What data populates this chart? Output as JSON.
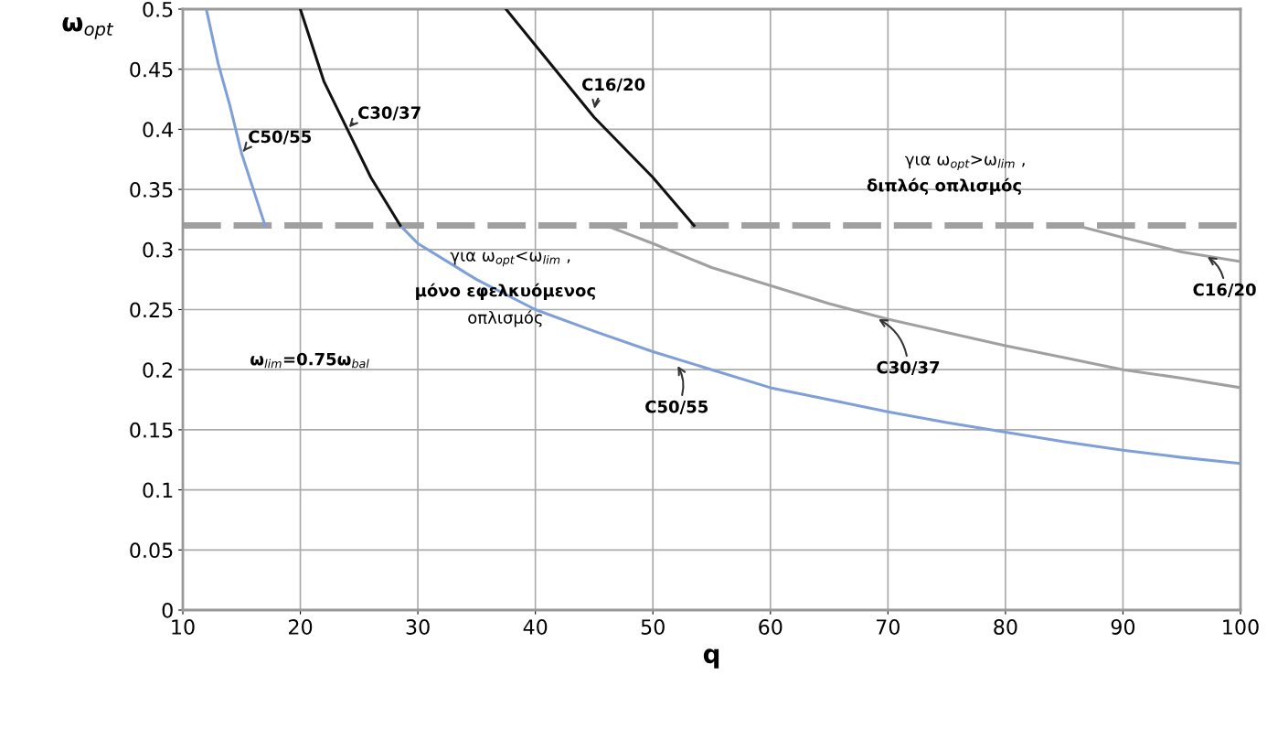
{
  "chart_data": {
    "type": "line",
    "xlabel": "q",
    "ylabel": "ω$_{opt}$",
    "xlim": [
      10,
      100
    ],
    "xticks": [
      10,
      20,
      30,
      40,
      50,
      60,
      70,
      80,
      90,
      100
    ],
    "ylim": [
      0,
      0.5
    ],
    "yticks": [
      0,
      0.05,
      0.1,
      0.15,
      0.2,
      0.25,
      0.3,
      0.35,
      0.4,
      0.45,
      0.5
    ],
    "grid": true,
    "line_style": "solid",
    "marker": "none",
    "series": [
      {
        "color": "#7f9fd8",
        "x": [
          12,
          13,
          14,
          15,
          16,
          17
        ],
        "values": [
          0.5,
          0.455,
          0.42,
          0.38,
          0.35,
          0.32
        ]
      },
      {
        "color": "#7f9fd8",
        "x": [
          28.5,
          30,
          35,
          40,
          45,
          50,
          55,
          60,
          65,
          70,
          75,
          80,
          85,
          90,
          95,
          100
        ],
        "values": [
          0.32,
          0.305,
          0.275,
          0.25,
          0.232,
          0.215,
          0.2,
          0.185,
          0.175,
          0.165,
          0.156,
          0.148,
          0.14,
          0.133,
          0.127,
          0.122
        ]
      },
      {
        "color": "#111111",
        "x": [
          20,
          22,
          24,
          26,
          28.5
        ],
        "values": [
          0.5,
          0.44,
          0.4,
          0.36,
          0.32
        ]
      },
      {
        "color": "#a0a0a0",
        "x": [
          46,
          50,
          55,
          60,
          65,
          70,
          75,
          80,
          85,
          90,
          95,
          100
        ],
        "values": [
          0.32,
          0.305,
          0.285,
          0.27,
          0.255,
          0.242,
          0.231,
          0.22,
          0.21,
          0.2,
          0.193,
          0.185
        ]
      },
      {
        "color": "#111111",
        "x": [
          37.5,
          40,
          45,
          50,
          53.5
        ],
        "values": [
          0.5,
          0.47,
          0.41,
          0.36,
          0.32
        ]
      },
      {
        "color": "#a0a0a0",
        "x": [
          86,
          90,
          95,
          100
        ],
        "values": [
          0.32,
          0.31,
          0.298,
          0.29
        ]
      }
    ],
    "ref_lines": [
      {
        "axis": "y",
        "value": 0.32,
        "color": "#a0a0a0",
        "line_style": "dashed"
      }
    ],
    "annotations": [
      {
        "text": "C50/55",
        "x": 15,
        "y": 0.38
      },
      {
        "text": "C30/37",
        "x": 24,
        "y": 0.4
      },
      {
        "text": "C16/20",
        "x": 45,
        "y": 0.415
      },
      {
        "text": "C16/20",
        "x": 97,
        "y": 0.295
      },
      {
        "text": "C30/37",
        "x": 69,
        "y": 0.243
      },
      {
        "text": "C50/55",
        "x": 52,
        "y": 0.205
      },
      "ω$_{lim}$=0.75ω$_{bal}$",
      "για ω$_{opt}$<ω$_{lim}$ ,",
      "μόνο εφελκυόμενος",
      "οπλισμός",
      "για ω$_{opt}$>ω$_{lim}$ ,",
      "διπλός οπλισμός"
    ]
  }
}
